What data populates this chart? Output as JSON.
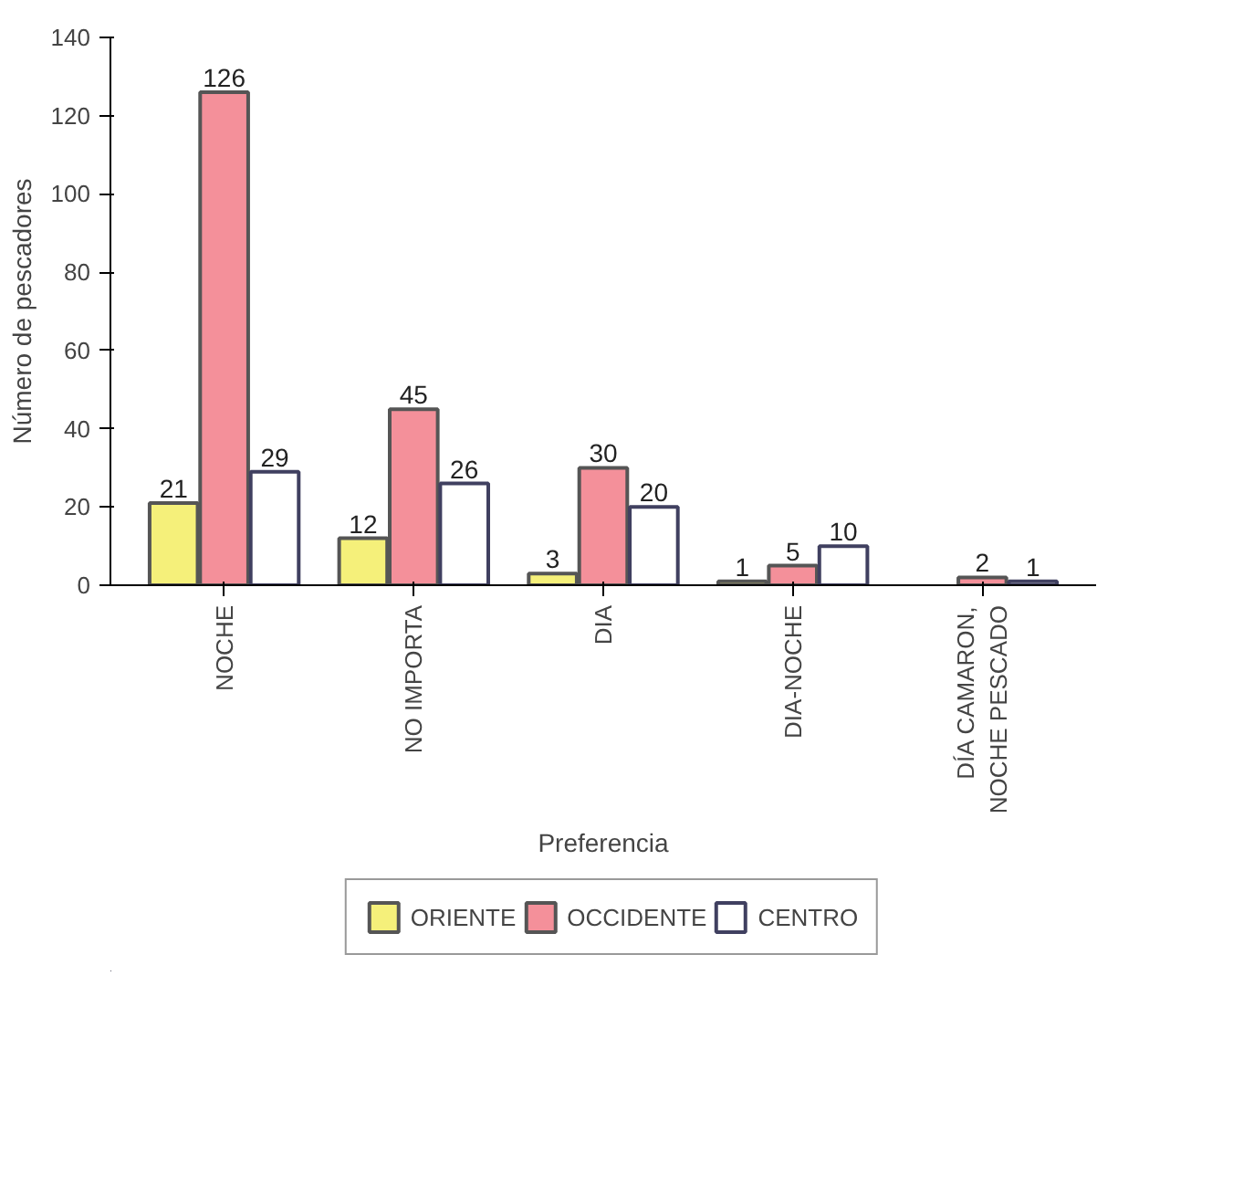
{
  "chart_data": {
    "type": "bar",
    "xlabel": "Preferencia",
    "ylabel": "Número de pescadores",
    "categories": [
      "NOCHE",
      "NO IMPORTA",
      "DIA",
      "DIA-NOCHE",
      "DÍA CAMARON, NOCHE PESCADO"
    ],
    "series": [
      {
        "name": "ORIENTE",
        "color": "#f5f07a",
        "values": [
          21,
          12,
          3,
          1,
          null
        ]
      },
      {
        "name": "OCCIDENTE",
        "color": "#f4909a",
        "values": [
          126,
          45,
          30,
          5,
          2
        ]
      },
      {
        "name": "CENTRO",
        "color": "#ffffff",
        "values": [
          29,
          26,
          20,
          10,
          1
        ]
      }
    ],
    "ylim": [
      0,
      140
    ],
    "yticks": [
      0,
      20,
      40,
      60,
      80,
      100,
      120,
      140
    ],
    "grid": false,
    "legend": "bottom",
    "data_labels": true
  }
}
